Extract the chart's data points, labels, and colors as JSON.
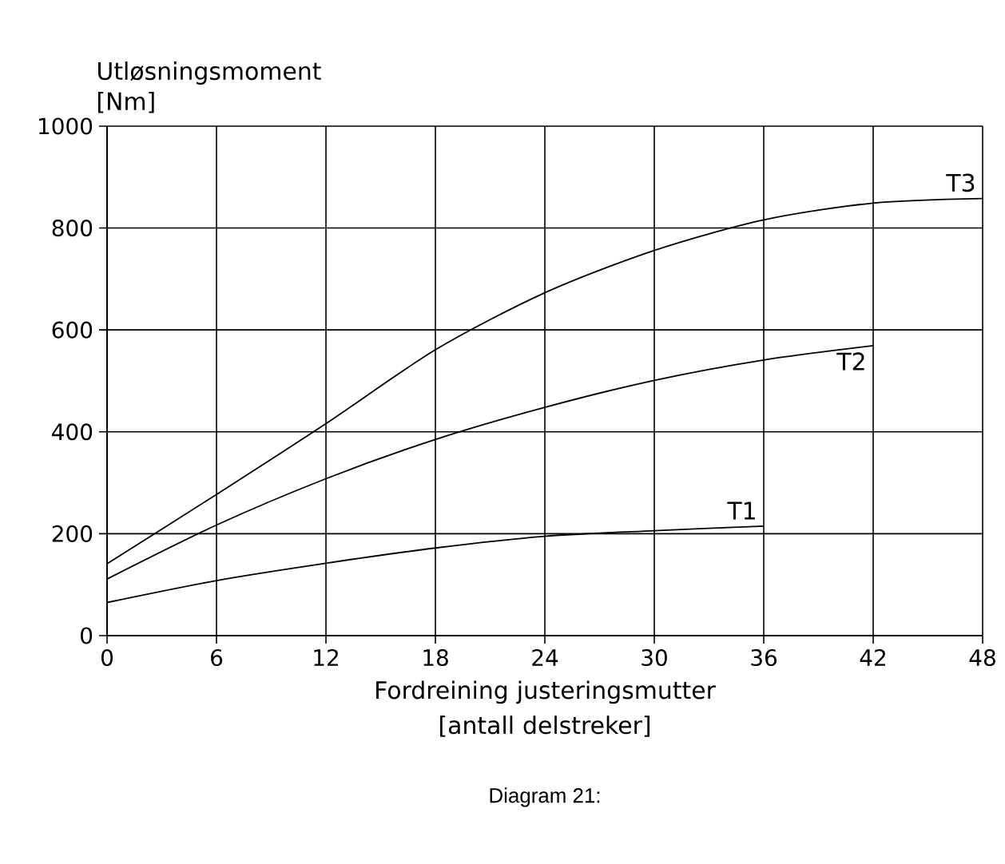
{
  "chart_data": {
    "type": "line",
    "ylabel": "Utløsningsmoment [Nm]",
    "xlabel": "Fordreining justeringsmutter [antall delstreker]",
    "x": [
      0,
      6,
      12,
      18,
      24,
      30,
      36,
      42,
      48
    ],
    "series": [
      {
        "name": "T3",
        "color": "#000000",
        "values": [
          141,
          277,
          416,
          561,
          673,
          756,
          816,
          849,
          858
        ]
      },
      {
        "name": "T2",
        "color": "#000000",
        "values": [
          111,
          217,
          308,
          385,
          448,
          501,
          541,
          569,
          null
        ]
      },
      {
        "name": "T1",
        "color": "#000000",
        "values": [
          65,
          108,
          142,
          172,
          195,
          206,
          215,
          null,
          null
        ]
      }
    ],
    "xlim": [
      0,
      48
    ],
    "ylim": [
      0,
      1000
    ],
    "xticks": [
      0,
      6,
      12,
      18,
      24,
      30,
      36,
      42,
      48
    ],
    "yticks": [
      0,
      200,
      400,
      600,
      800,
      1000
    ],
    "grid": true,
    "marker": "none",
    "line_style": "solid",
    "annotations": [
      "Diagram 21:"
    ]
  }
}
